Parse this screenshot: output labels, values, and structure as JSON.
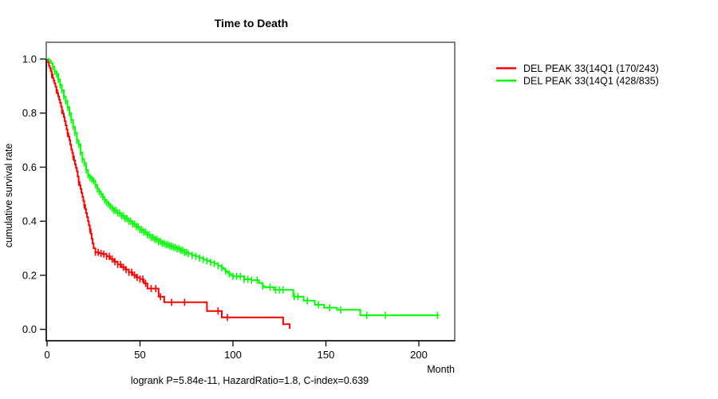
{
  "chart_data": {
    "type": "line",
    "subtype": "kaplan-meier-step",
    "title": "Time to Death",
    "xlabel": "Month",
    "ylabel": "cumulative survival rate",
    "xlim": [
      0,
      220
    ],
    "ylim": [
      0,
      1
    ],
    "xticks": [
      0,
      50,
      100,
      150,
      200
    ],
    "xtick_labels": [
      "0",
      "50",
      "100",
      "150",
      "200"
    ],
    "yticks": [
      0,
      0.2,
      0.4,
      0.6,
      0.8,
      1
    ],
    "ytick_labels": [
      "0.0",
      "0.2",
      "0.4",
      "0.6",
      "0.8",
      "1.0"
    ],
    "grid": false,
    "legend_position": "right-outside",
    "annotation": "logrank P=5.84e-11, HazardRatio=1.8, C-index=0.639",
    "box_color": "#808080",
    "axis_color": "#000000",
    "series": [
      {
        "name": "DEL PEAK 33(14Q1 (170/243)",
        "color": "#ff0000",
        "points": [
          [
            0,
            1.0
          ],
          [
            0.5,
            0.988
          ],
          [
            1,
            0.975
          ],
          [
            1.5,
            0.966
          ],
          [
            2,
            0.955
          ],
          [
            2.5,
            0.943
          ],
          [
            3,
            0.93
          ],
          [
            3.5,
            0.92
          ],
          [
            4,
            0.91
          ],
          [
            4.5,
            0.898
          ],
          [
            5,
            0.885
          ],
          [
            5.5,
            0.874
          ],
          [
            6,
            0.862
          ],
          [
            6.5,
            0.85
          ],
          [
            7,
            0.838
          ],
          [
            7.5,
            0.824
          ],
          [
            8,
            0.81
          ],
          [
            8.5,
            0.798
          ],
          [
            9,
            0.785
          ],
          [
            9.5,
            0.77
          ],
          [
            10,
            0.755
          ],
          [
            10.5,
            0.74
          ],
          [
            11,
            0.725
          ],
          [
            11.5,
            0.713
          ],
          [
            12,
            0.7
          ],
          [
            12.5,
            0.683
          ],
          [
            13,
            0.665
          ],
          [
            13.5,
            0.653
          ],
          [
            14,
            0.64
          ],
          [
            14.5,
            0.625
          ],
          [
            15,
            0.61
          ],
          [
            15.5,
            0.598
          ],
          [
            16,
            0.585
          ],
          [
            16.5,
            0.565
          ],
          [
            17,
            0.545
          ],
          [
            17.5,
            0.533
          ],
          [
            18,
            0.52
          ],
          [
            18.5,
            0.505
          ],
          [
            19,
            0.49
          ],
          [
            19.5,
            0.475
          ],
          [
            20,
            0.46
          ],
          [
            20.5,
            0.445
          ],
          [
            21,
            0.43
          ],
          [
            21.5,
            0.415
          ],
          [
            22,
            0.4
          ],
          [
            22.5,
            0.385
          ],
          [
            23,
            0.37
          ],
          [
            23.5,
            0.353
          ],
          [
            24,
            0.335
          ],
          [
            24.5,
            0.318
          ],
          [
            25,
            0.3
          ],
          [
            26,
            0.285
          ],
          [
            28,
            0.281
          ],
          [
            30,
            0.278
          ],
          [
            32,
            0.27
          ],
          [
            34,
            0.26
          ],
          [
            36,
            0.25
          ],
          [
            38,
            0.24
          ],
          [
            40,
            0.23
          ],
          [
            42,
            0.221
          ],
          [
            44,
            0.211
          ],
          [
            46,
            0.201
          ],
          [
            48,
            0.192
          ],
          [
            50,
            0.186
          ],
          [
            52,
            0.17
          ],
          [
            54,
            0.151
          ],
          [
            60,
            0.121
          ],
          [
            63,
            0.1
          ],
          [
            86,
            0.068
          ],
          [
            94,
            0.044
          ],
          [
            127,
            0.019
          ],
          [
            130.5,
            0.005
          ],
          [
            131,
            0.005
          ]
        ],
        "censor_ticks": [
          2.5,
          5,
          8,
          11,
          14,
          17,
          20,
          23,
          26,
          27.5,
          29,
          30.5,
          32,
          33.5,
          35,
          36.5,
          38,
          39.5,
          41,
          42.5,
          44,
          45.5,
          47,
          48.5,
          50,
          51.5,
          53,
          56,
          58.5,
          61,
          67,
          74,
          92,
          97
        ]
      },
      {
        "name": "DEL PEAK 33(14Q1 (428/835)",
        "color": "#00ff00",
        "points": [
          [
            0,
            1.0
          ],
          [
            1,
            0.995
          ],
          [
            2,
            0.985
          ],
          [
            3,
            0.972
          ],
          [
            4,
            0.955
          ],
          [
            5,
            0.945
          ],
          [
            6,
            0.925
          ],
          [
            7,
            0.905
          ],
          [
            8,
            0.885
          ],
          [
            9,
            0.862
          ],
          [
            10,
            0.845
          ],
          [
            11,
            0.822
          ],
          [
            12,
            0.8
          ],
          [
            13,
            0.775
          ],
          [
            14,
            0.75
          ],
          [
            15,
            0.728
          ],
          [
            16,
            0.7
          ],
          [
            17,
            0.685
          ],
          [
            18,
            0.655
          ],
          [
            19,
            0.63
          ],
          [
            20,
            0.615
          ],
          [
            21,
            0.59
          ],
          [
            22,
            0.572
          ],
          [
            23,
            0.562
          ],
          [
            24,
            0.556
          ],
          [
            25,
            0.55
          ],
          [
            26,
            0.535
          ],
          [
            27,
            0.52
          ],
          [
            28,
            0.51
          ],
          [
            29,
            0.5
          ],
          [
            30,
            0.49
          ],
          [
            31,
            0.478
          ],
          [
            32,
            0.47
          ],
          [
            33,
            0.463
          ],
          [
            34,
            0.455
          ],
          [
            35,
            0.448
          ],
          [
            36,
            0.44
          ],
          [
            38,
            0.43
          ],
          [
            40,
            0.42
          ],
          [
            42,
            0.41
          ],
          [
            44,
            0.4
          ],
          [
            46,
            0.39
          ],
          [
            48,
            0.38
          ],
          [
            50,
            0.368
          ],
          [
            52,
            0.36
          ],
          [
            54,
            0.35
          ],
          [
            56,
            0.34
          ],
          [
            58,
            0.333
          ],
          [
            60,
            0.325
          ],
          [
            62,
            0.318
          ],
          [
            64,
            0.313
          ],
          [
            66,
            0.308
          ],
          [
            68,
            0.303
          ],
          [
            70,
            0.298
          ],
          [
            72,
            0.292
          ],
          [
            74,
            0.285
          ],
          [
            76,
            0.28
          ],
          [
            78,
            0.274
          ],
          [
            80,
            0.27
          ],
          [
            82,
            0.264
          ],
          [
            84,
            0.258
          ],
          [
            86,
            0.253
          ],
          [
            88,
            0.248
          ],
          [
            90,
            0.243
          ],
          [
            92,
            0.235
          ],
          [
            94,
            0.228
          ],
          [
            95,
            0.222
          ],
          [
            96,
            0.215
          ],
          [
            97,
            0.21
          ],
          [
            98,
            0.205
          ],
          [
            99,
            0.199
          ],
          [
            100,
            0.196
          ],
          [
            106,
            0.185
          ],
          [
            110,
            0.182
          ],
          [
            114,
            0.171
          ],
          [
            116,
            0.16
          ],
          [
            117,
            0.156
          ],
          [
            122,
            0.146
          ],
          [
            132.5,
            0.121
          ],
          [
            138,
            0.106
          ],
          [
            144,
            0.091
          ],
          [
            149,
            0.08
          ],
          [
            156,
            0.072
          ],
          [
            168.5,
            0.052
          ],
          [
            211,
            0.052
          ]
        ],
        "censor_ticks": [
          3,
          4,
          5,
          6,
          7,
          8,
          9,
          10,
          11,
          12,
          13,
          14,
          15,
          16,
          17,
          18,
          19,
          20,
          21,
          22,
          23,
          24,
          25,
          26,
          27,
          28,
          29,
          30,
          31,
          32,
          33,
          34,
          35,
          36,
          37,
          38,
          39,
          40,
          41,
          42,
          43,
          44,
          45,
          46,
          47,
          48,
          49,
          50,
          51,
          52,
          53,
          54,
          55,
          56,
          57,
          58,
          59,
          60,
          61,
          62,
          63,
          64,
          65,
          66,
          67,
          68,
          69,
          70,
          71,
          72,
          73,
          74,
          75,
          76,
          78,
          80,
          82,
          84,
          86,
          88,
          90,
          92,
          94,
          96,
          98,
          100,
          102,
          104,
          106,
          108,
          110,
          113,
          116,
          120,
          123,
          125,
          127,
          133,
          135,
          140,
          146,
          152,
          158,
          172,
          182,
          210
        ]
      }
    ]
  }
}
